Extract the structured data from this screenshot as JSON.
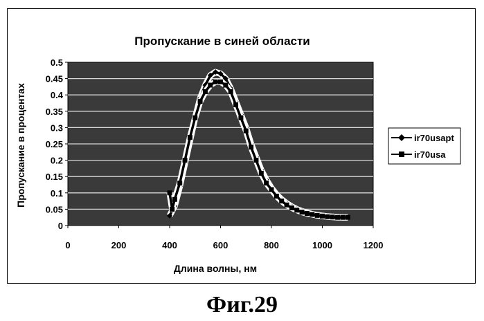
{
  "chart_data": {
    "type": "line",
    "title": "Пропускание в синей области",
    "xlabel": "Длина волны, нм",
    "ylabel": "Пропускание в процентах",
    "xlim": [
      0,
      1200
    ],
    "ylim": [
      0,
      0.5
    ],
    "x_ticks": [
      "0",
      "200",
      "400",
      "600",
      "800",
      "1000",
      "1200"
    ],
    "y_ticks": [
      "0",
      "0.05",
      "0.1",
      "0.15",
      "0.2",
      "0.25",
      "0.3",
      "0.35",
      "0.4",
      "0.45",
      "0.5"
    ],
    "grid": true,
    "legend_position": "right",
    "plot_background": "#3a3a3a",
    "series": [
      {
        "name": "ir70usapt",
        "marker": "diamond",
        "color": "#000000",
        "x": [
          400,
          420,
          440,
          460,
          480,
          500,
          520,
          540,
          560,
          580,
          600,
          620,
          640,
          660,
          680,
          700,
          720,
          740,
          760,
          780,
          800,
          820,
          840,
          860,
          880,
          900,
          920,
          940,
          960,
          980,
          1000,
          1020,
          1040,
          1060,
          1080,
          1100
        ],
        "y": [
          0.03,
          0.06,
          0.12,
          0.19,
          0.26,
          0.33,
          0.39,
          0.43,
          0.46,
          0.47,
          0.465,
          0.45,
          0.42,
          0.38,
          0.34,
          0.3,
          0.25,
          0.21,
          0.17,
          0.14,
          0.115,
          0.095,
          0.08,
          0.068,
          0.058,
          0.05,
          0.044,
          0.039,
          0.035,
          0.032,
          0.03,
          0.028,
          0.027,
          0.026,
          0.025,
          0.025
        ]
      },
      {
        "name": "ir70usa",
        "marker": "square",
        "color": "#000000",
        "x": [
          400,
          410,
          420,
          440,
          460,
          480,
          500,
          520,
          540,
          560,
          580,
          600,
          620,
          640,
          660,
          680,
          700,
          720,
          740,
          760,
          780,
          800,
          820,
          840,
          860,
          880,
          900,
          920,
          940,
          960,
          980,
          1000,
          1020,
          1040,
          1060,
          1080,
          1100
        ],
        "y": [
          0.1,
          0.05,
          0.08,
          0.13,
          0.2,
          0.27,
          0.33,
          0.38,
          0.41,
          0.43,
          0.44,
          0.44,
          0.43,
          0.41,
          0.37,
          0.33,
          0.29,
          0.24,
          0.2,
          0.16,
          0.13,
          0.11,
          0.09,
          0.075,
          0.063,
          0.054,
          0.047,
          0.041,
          0.037,
          0.034,
          0.031,
          0.029,
          0.027,
          0.026,
          0.025,
          0.025,
          0.025
        ]
      }
    ]
  },
  "caption": "Фиг.29"
}
